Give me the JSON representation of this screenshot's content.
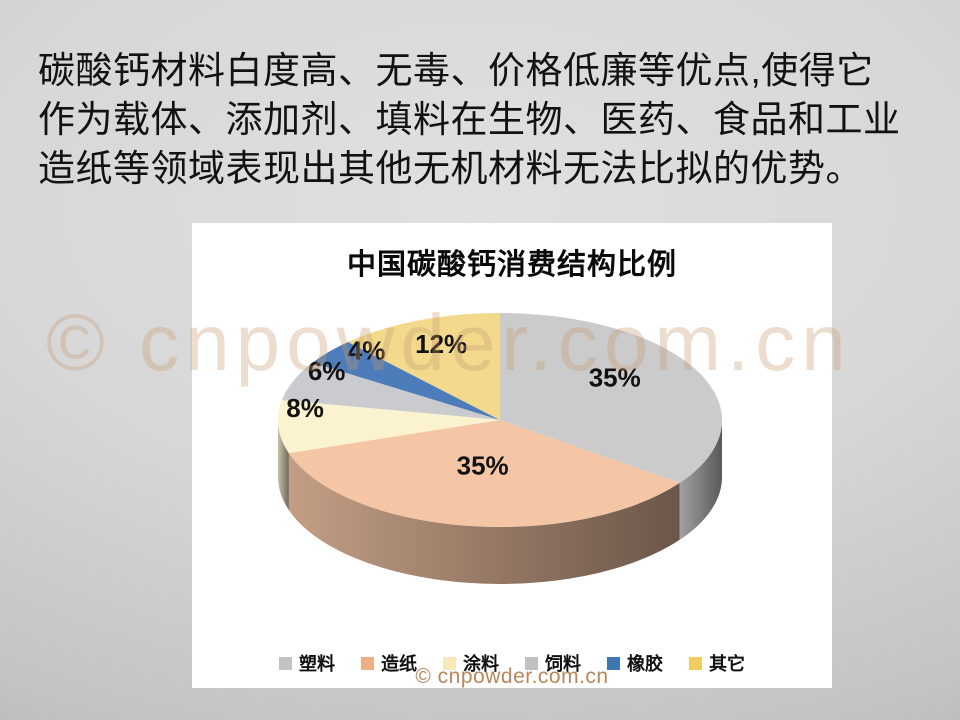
{
  "intro": {
    "lines": [
      "碳酸钙材料白度高、无毒、价格低廉等优点,使得它",
      "作为载体、添加剂、填料在生物、医药、食品和工业",
      "造纸等领域表现出其他无机材料无法比拟的优势。"
    ]
  },
  "watermark": {
    "large_text": "© cnpowder.com.cn",
    "small_text": "© cnpowder.com.cn",
    "large_color": "#c89a6e",
    "small_color": "#b9865a"
  },
  "chart_data": {
    "type": "pie",
    "style": "3d",
    "title": "中国碳酸钙消费结构比例",
    "start_angle_deg": 0,
    "direction": "clockwise",
    "legend_position": "bottom",
    "slices": [
      {
        "label": "塑料",
        "value": 35,
        "display": "35%",
        "color": "#cbcbcb",
        "legend_color": "#c3c3c3"
      },
      {
        "label": "造纸",
        "value": 35,
        "display": "35%",
        "color": "#f4c6a5",
        "legend_color": "#efaf84"
      },
      {
        "label": "涂料",
        "value": 8,
        "display": "8%",
        "color": "#fbf2d0",
        "legend_color": "#f8e8bc"
      },
      {
        "label": "饲料",
        "value": 6,
        "display": "6%",
        "color": "#c9cbce",
        "legend_color": "#c1c1c1"
      },
      {
        "label": "橡胶",
        "value": 4,
        "display": "4%",
        "color": "#4d7cba",
        "legend_color": "#3e76b2"
      },
      {
        "label": "其它",
        "value": 12,
        "display": "12%",
        "color": "#f2d98c",
        "legend_color": "#f1cc63"
      }
    ]
  }
}
